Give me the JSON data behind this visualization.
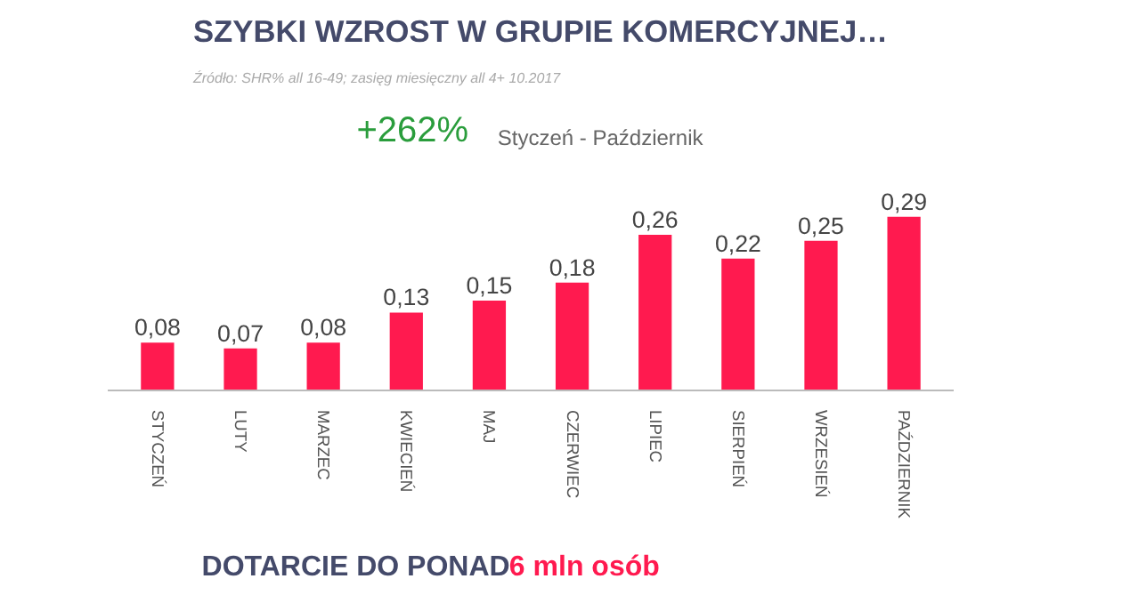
{
  "chart_data": {
    "type": "bar",
    "title": "SZYBKI WZROST W GRUPIE KOMERCYJNEJ…",
    "subtitle": "Źródło: SHR% all 16-49; zasięg miesięczny all 4+ 10.2017",
    "categories": [
      "STYCZEŃ",
      "LUTY",
      "MARZEC",
      "KWIECIEŃ",
      "MAJ",
      "CZERWIEC",
      "LIPIEC",
      "SIERPIEŃ",
      "WRZESIEŃ",
      "PAŹDZIERNIK"
    ],
    "values": [
      0.08,
      0.07,
      0.08,
      0.13,
      0.15,
      0.18,
      0.26,
      0.22,
      0.25,
      0.29
    ],
    "value_labels": [
      "0,08",
      "0,07",
      "0,08",
      "0,13",
      "0,15",
      "0,18",
      "0,26",
      "0,22",
      "0,25",
      "0,29"
    ],
    "color": "#ff1a4f",
    "grid": false,
    "annotations": [
      "+262%",
      "Styczeń - Październik",
      "DOTARCIE DO PONAD",
      "6 mln osób"
    ]
  }
}
